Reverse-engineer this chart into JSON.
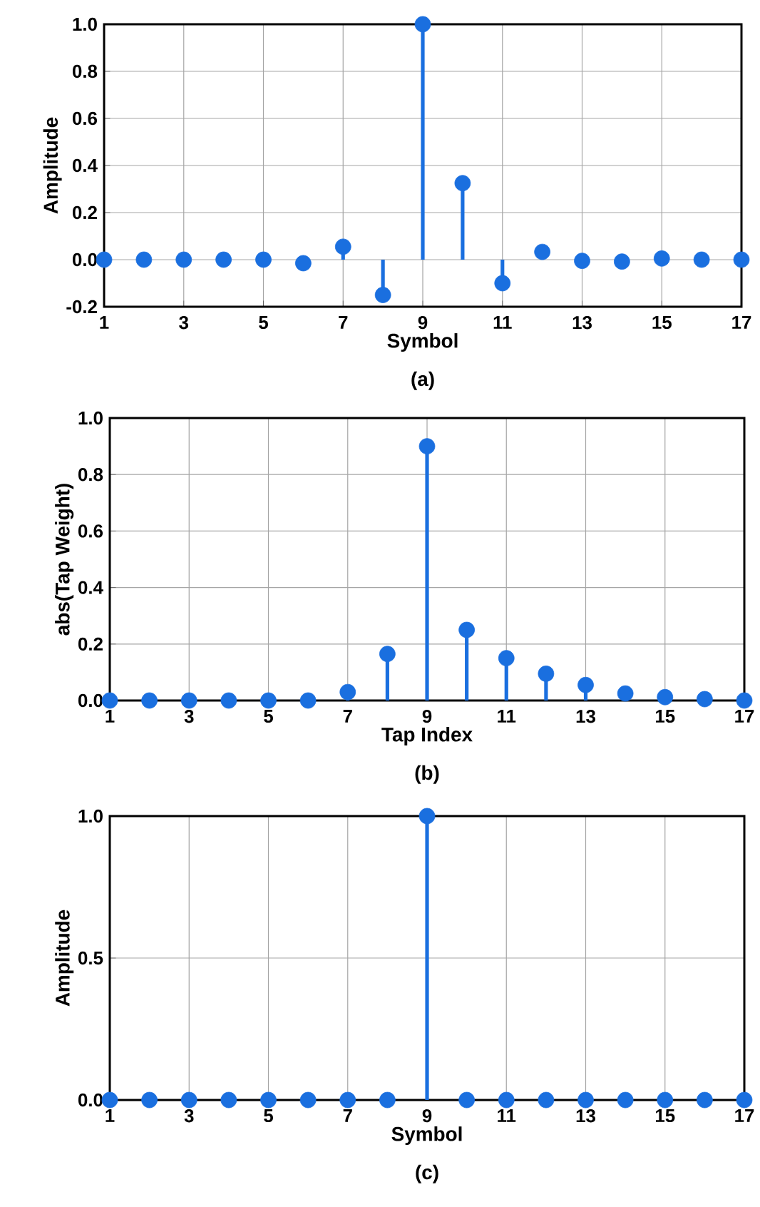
{
  "chart_data": [
    {
      "type": "lollipop",
      "xlabel": "Symbol",
      "ylabel": "Amplitude",
      "annotations": [
        "(a)"
      ],
      "x": [
        1,
        2,
        3,
        4,
        5,
        6,
        7,
        8,
        9,
        10,
        11,
        12,
        13,
        14,
        15,
        16,
        17
      ],
      "values": [
        0,
        0,
        0,
        0,
        0,
        -0.015,
        0.055,
        -0.15,
        1.0,
        0.325,
        -0.1,
        0.033,
        -0.005,
        -0.008,
        0.005,
        0,
        0
      ],
      "color": "#1a6fdf",
      "xlim": [
        1,
        17
      ],
      "xticks": [
        1,
        3,
        5,
        7,
        9,
        11,
        13,
        15,
        17
      ],
      "ylim": [
        -0.2,
        1.0
      ],
      "yticks": [
        {
          "value": -0.2,
          "label": "-0.2"
        },
        {
          "value": 0,
          "label": "0.0"
        },
        {
          "value": 0.2,
          "label": "0.2"
        },
        {
          "value": 0.4,
          "label": "0.4"
        },
        {
          "value": 0.6,
          "label": "0.6"
        },
        {
          "value": 0.8,
          "label": "0.8"
        },
        {
          "value": 1,
          "label": "1.0"
        }
      ],
      "grid": true,
      "marker": "circle"
    },
    {
      "type": "lollipop",
      "xlabel": "Tap Index",
      "ylabel": "abs(Tap Weight)",
      "annotations": [
        "(b)"
      ],
      "x": [
        1,
        2,
        3,
        4,
        5,
        6,
        7,
        8,
        9,
        10,
        11,
        12,
        13,
        14,
        15,
        16,
        17
      ],
      "values": [
        0,
        0,
        0,
        0,
        0,
        0,
        0.03,
        0.165,
        0.9,
        0.25,
        0.15,
        0.095,
        0.055,
        0.025,
        0.012,
        0.005,
        0
      ],
      "color": "#1a6fdf",
      "xlim": [
        1,
        17
      ],
      "xticks": [
        1,
        3,
        5,
        7,
        9,
        11,
        13,
        15,
        17
      ],
      "ylim": [
        0.0,
        1.0
      ],
      "yticks": [
        {
          "value": 0,
          "label": "0.0"
        },
        {
          "value": 0.2,
          "label": "0.2"
        },
        {
          "value": 0.4,
          "label": "0.4"
        },
        {
          "value": 0.6,
          "label": "0.6"
        },
        {
          "value": 0.8,
          "label": "0.8"
        },
        {
          "value": 1,
          "label": "1.0"
        }
      ],
      "grid": true,
      "marker": "circle"
    },
    {
      "type": "lollipop",
      "xlabel": "Symbol",
      "ylabel": "Amplitude",
      "annotations": [
        "(c)"
      ],
      "x": [
        1,
        2,
        3,
        4,
        5,
        6,
        7,
        8,
        9,
        10,
        11,
        12,
        13,
        14,
        15,
        16,
        17
      ],
      "values": [
        0,
        0,
        0,
        0,
        0,
        0,
        0,
        0,
        1,
        0,
        0,
        0,
        0,
        0,
        0,
        0,
        0
      ],
      "color": "#1a6fdf",
      "xlim": [
        1,
        17
      ],
      "xticks": [
        1,
        3,
        5,
        7,
        9,
        11,
        13,
        15,
        17
      ],
      "ylim": [
        0.0,
        1.0
      ],
      "yticks": [
        {
          "value": 0,
          "label": "0.0"
        },
        {
          "value": 0.5,
          "label": "0.5"
        },
        {
          "value": 1,
          "label": "1.0"
        }
      ],
      "grid": true,
      "marker": "circle"
    }
  ]
}
